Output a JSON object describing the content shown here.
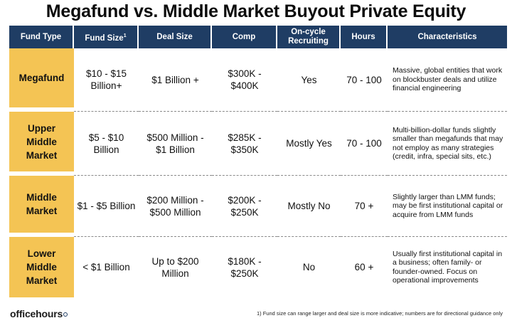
{
  "title": "Megafund vs. Middle Market Buyout Private Equity",
  "headers": {
    "fund_type": "Fund Type",
    "fund_size": "Fund Size",
    "fund_size_marker": "1",
    "deal_size": "Deal Size",
    "comp": "Comp",
    "recruiting": "On-cycle Recruiting",
    "hours": "Hours",
    "characteristics": "Characteristics"
  },
  "rows": [
    {
      "fund_type": "Megafund",
      "fund_size": "$10 - $15 Billion+",
      "deal_size": "$1 Billion +",
      "comp": "$300K - $400K",
      "recruiting": "Yes",
      "hours": "70 - 100",
      "characteristics": "Massive, global entities that work on blockbuster deals and utilize financial engineering"
    },
    {
      "fund_type": "Upper Middle Market",
      "fund_size": "$5 - $10 Billion",
      "deal_size": "$500 Million - $1 Billion",
      "comp": "$285K - $350K",
      "recruiting": "Mostly Yes",
      "hours": "70 - 100",
      "characteristics": "Multi-billion-dollar funds slightly smaller than megafunds that may not employ as many strategies (credit, infra, special sits, etc.)"
    },
    {
      "fund_type": "Middle Market",
      "fund_size": "$1 - $5 Billion",
      "deal_size": "$200 Million - $500 Million",
      "comp": "$200K - $250K",
      "recruiting": "Mostly No",
      "hours": "70 +",
      "characteristics": "Slightly larger than LMM funds; may be first institutional capital or acquire from LMM funds"
    },
    {
      "fund_type": "Lower Middle Market",
      "fund_size": "< $1 Billion",
      "deal_size": "Up to $200 Million",
      "comp": "$180K - $250K",
      "recruiting": "No",
      "hours": "60 +",
      "characteristics": "Usually first institutional capital in a business; often family- or founder-owned. Focus on operational improvements"
    }
  ],
  "logo": "officehours",
  "footnote": "1) Fund size can range larger and deal size is more indicative; numbers are for directional guidance only",
  "colors": {
    "header_bg": "#1f3d64",
    "type_bg": "#f4c454",
    "divider": "#8a8a8a"
  }
}
